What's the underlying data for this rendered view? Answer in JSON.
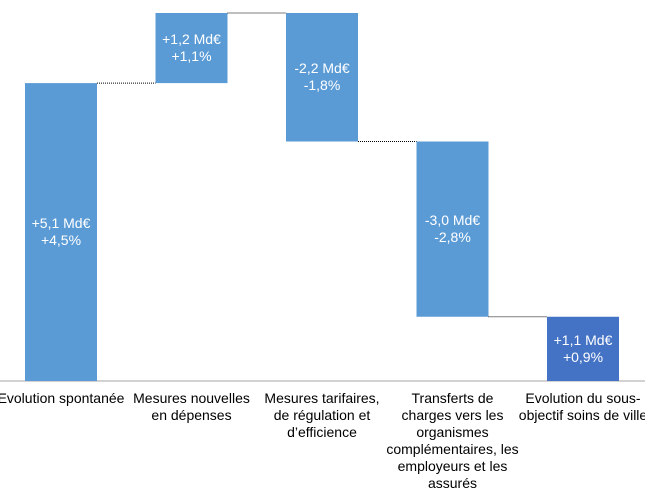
{
  "chart_data": {
    "type": "waterfall",
    "categories": [
      "Evolution spontanée",
      "Mesures nouvelles en dépenses",
      "Mesures tarifaires, de régulation et d’efficience",
      "Transferts de charges vers les organismes complémentaires, les employeurs et les assurés",
      "Evolution du sous-objectif soins de ville"
    ],
    "values": [
      5.1,
      1.2,
      -2.2,
      -3.0,
      1.1
    ],
    "value_labels": [
      "+5,1 Md€",
      "+1,2 Md€",
      "-2,2 Md€",
      "-3,0 Md€",
      "+1,1 Md€"
    ],
    "rates": [
      4.5,
      1.1,
      -1.8,
      -2.8,
      0.9
    ],
    "rate_labels": [
      "+4,5%",
      "+1,1%",
      "-1,8%",
      "-2,8%",
      "+0,9%"
    ],
    "totals": [
      false,
      false,
      false,
      false,
      true
    ],
    "color": "#5b9bd5",
    "total_color": "#4472c4"
  }
}
